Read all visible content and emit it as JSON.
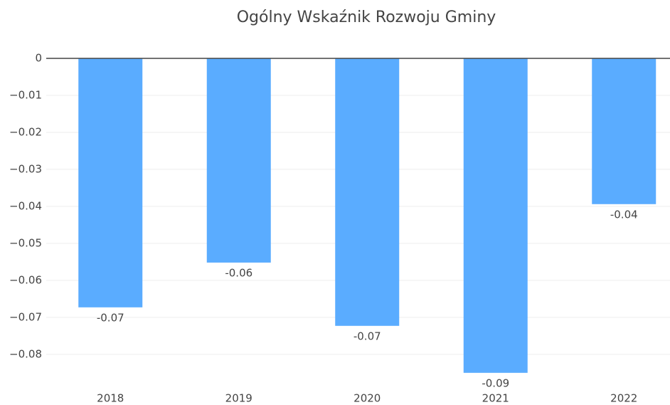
{
  "chart_data": {
    "type": "bar",
    "title": "Ogólny Wskaźnik Rozwoju Gminy",
    "categories": [
      "2018",
      "2019",
      "2020",
      "2021",
      "2022"
    ],
    "values": [
      -0.0673,
      -0.0552,
      -0.0723,
      -0.085,
      -0.0394
    ],
    "value_labels": [
      "-0.07",
      "-0.06",
      "-0.07",
      "-0.09",
      "-0.04"
    ],
    "color": "#5aacff",
    "ylim": [
      -0.0885,
      0
    ],
    "yticks": [
      0,
      {
        "value": -0.01,
        "label": "−0.01"
      },
      {
        "value": -0.02,
        "label": "−0.02"
      },
      {
        "value": -0.03,
        "label": "−0.03"
      },
      {
        "value": -0.04,
        "label": "−0.04"
      },
      {
        "value": -0.05,
        "label": "−0.05"
      },
      {
        "value": -0.06,
        "label": "−0.06"
      },
      {
        "value": -0.07,
        "label": "−0.07"
      },
      {
        "value": -0.08,
        "label": "−0.08"
      }
    ],
    "grid": true
  }
}
